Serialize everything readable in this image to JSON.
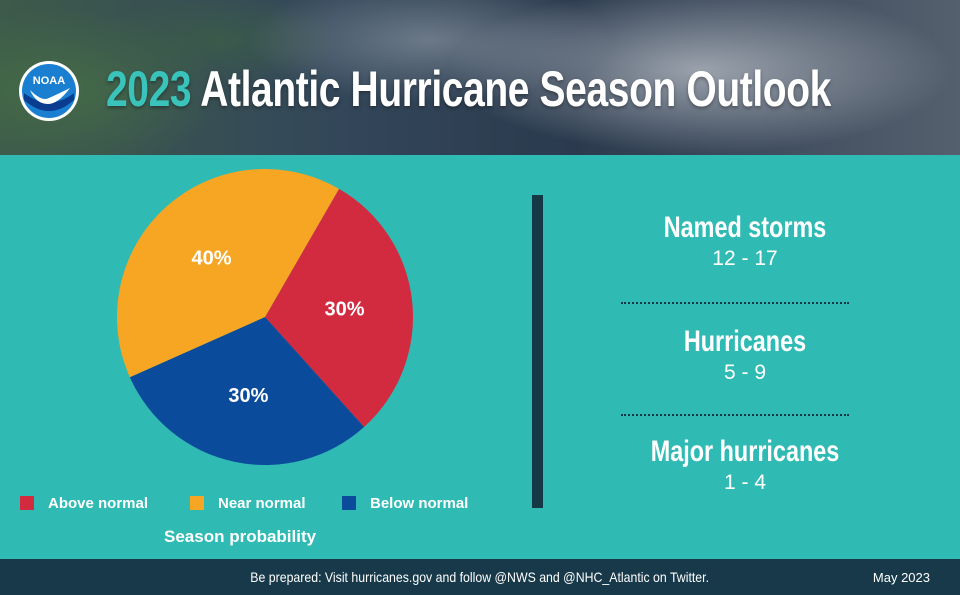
{
  "header": {
    "title_year": "2023",
    "title_rest": "Atlantic Hurricane Season Outlook",
    "logo_text": "NOAA"
  },
  "colors": {
    "above_normal": "#d22b3f",
    "near_normal": "#f6a623",
    "below_normal": "#0b4b9b",
    "background": "#2fbab4",
    "footer": "#17394a"
  },
  "chart_data": {
    "type": "pie",
    "title": "Season probability",
    "slices": [
      {
        "label": "Above normal",
        "value": 30,
        "display": "30%",
        "color": "#d22b3f"
      },
      {
        "label": "Below normal",
        "value": 30,
        "display": "30%",
        "color": "#0b4b9b"
      },
      {
        "label": "Near normal",
        "value": 40,
        "display": "40%",
        "color": "#f6a623"
      }
    ],
    "legend": [
      "Above normal",
      "Near normal",
      "Below normal"
    ],
    "legend_placement": "bottom"
  },
  "stats": [
    {
      "label": "Named storms",
      "value": "12 - 17"
    },
    {
      "label": "Hurricanes",
      "value": "5 - 9"
    },
    {
      "label": "Major hurricanes",
      "value": "1 - 4"
    }
  ],
  "footer": {
    "text": "Be prepared: Visit hurricanes.gov and follow @NWS and @NHC_Atlantic on Twitter.",
    "date": "May 2023"
  }
}
